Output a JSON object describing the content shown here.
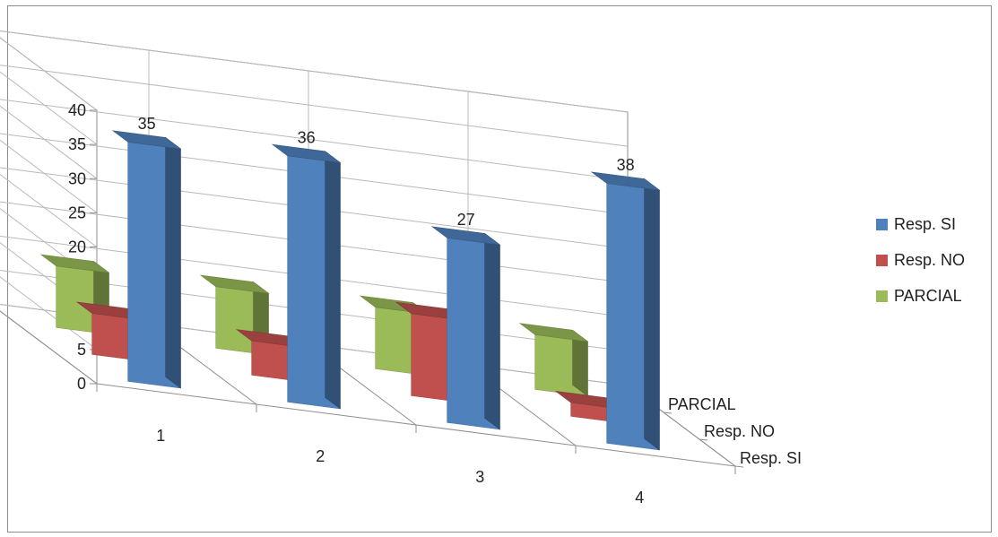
{
  "chart_data": {
    "type": "bar",
    "variant": "3d-column",
    "title": "",
    "xlabel": "",
    "ylabel": "",
    "ylim": [
      0,
      40
    ],
    "y_ticks": [
      "0",
      "5",
      "10",
      "15",
      "20",
      "25",
      "30",
      "35",
      "40"
    ],
    "categories": [
      "1",
      "2",
      "3",
      "4"
    ],
    "depth_labels": [
      "Resp. SI",
      "Resp. NO",
      "PARCIAL"
    ],
    "series": [
      {
        "name": "Resp. SI",
        "values": [
          35,
          36,
          27,
          38
        ],
        "data_labels": [
          "35",
          "36",
          "27",
          "38"
        ],
        "color": "#4F81BD"
      },
      {
        "name": "Resp. NO",
        "values": [
          6,
          5,
          12,
          2
        ],
        "color": "#C0504D"
      },
      {
        "name": "PARCIAL",
        "values": [
          9,
          9,
          9,
          8
        ],
        "color": "#9BBB59"
      }
    ],
    "legend_position": "right",
    "grid": true
  }
}
